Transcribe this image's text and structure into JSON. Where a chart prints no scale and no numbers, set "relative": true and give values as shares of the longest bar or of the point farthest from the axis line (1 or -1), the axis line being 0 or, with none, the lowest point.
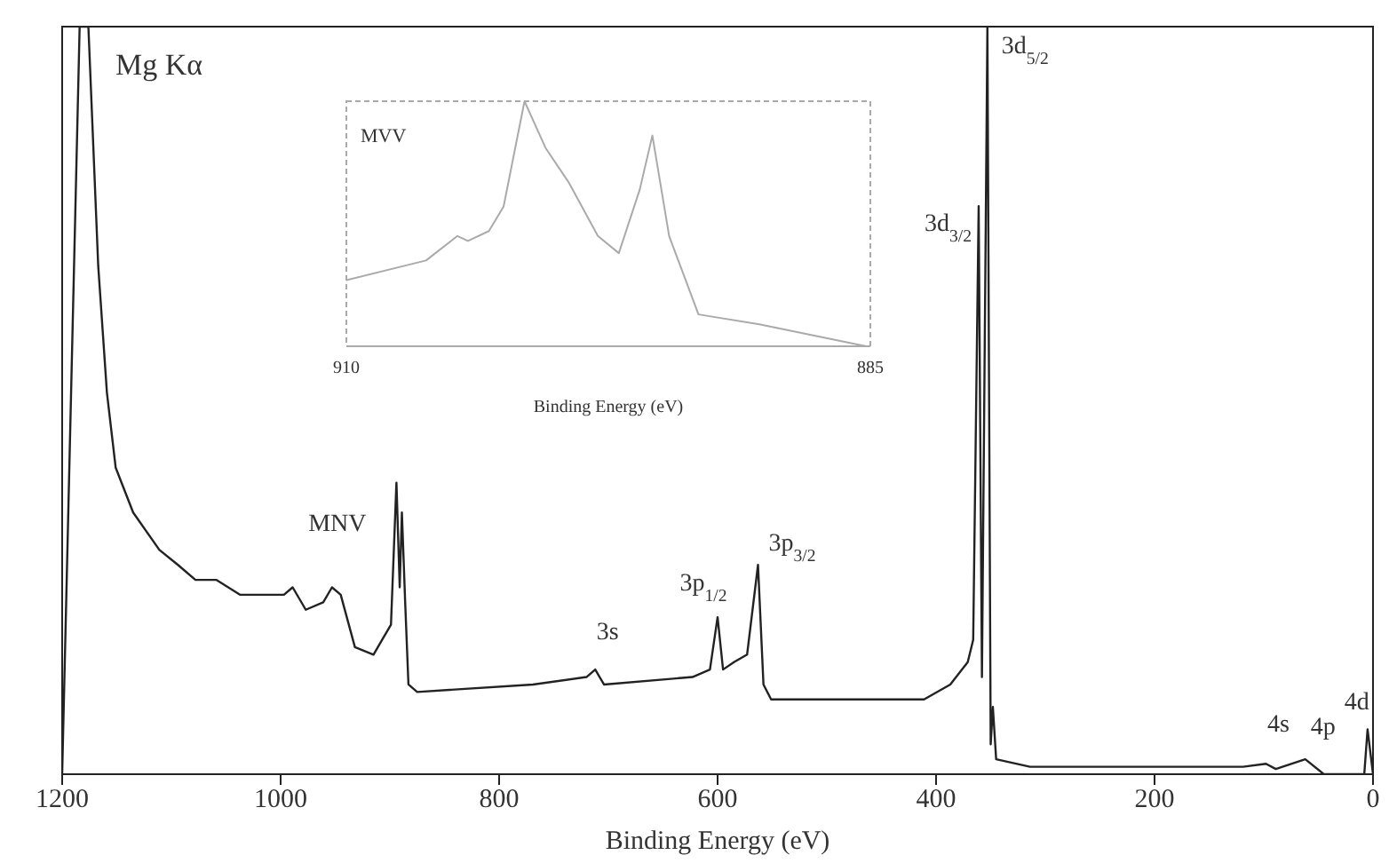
{
  "chart_data": [
    {
      "type": "line",
      "xlabel": "Binding Energy (eV)",
      "xlim": [
        1200,
        0
      ],
      "xticks": [
        1200,
        1000,
        800,
        600,
        400,
        200,
        0
      ],
      "relative": true,
      "x": [
        1200,
        1184,
        1176,
        1167,
        1159,
        1151,
        1135,
        1111,
        1094,
        1078,
        1059,
        1037,
        997,
        989,
        977,
        961,
        953,
        945,
        932,
        915,
        907,
        899,
        894,
        891,
        889,
        886,
        883,
        875,
        769,
        720,
        712,
        704,
        623,
        607,
        600,
        595,
        585,
        573,
        563,
        558,
        551,
        541,
        411,
        387,
        371,
        366,
        361,
        358,
        353,
        350,
        348,
        345,
        314,
        119,
        98,
        89,
        62,
        45,
        8,
        5,
        0
      ],
      "series": [
        {
          "color": "#222222",
          "values": [
            0,
            1.0,
            1.0,
            0.68,
            0.51,
            0.41,
            0.35,
            0.3,
            0.28,
            0.26,
            0.26,
            0.24,
            0.24,
            0.25,
            0.22,
            0.23,
            0.25,
            0.24,
            0.17,
            0.16,
            0.18,
            0.2,
            0.39,
            0.25,
            0.35,
            0.23,
            0.12,
            0.11,
            0.12,
            0.13,
            0.14,
            0.12,
            0.13,
            0.14,
            0.21,
            0.14,
            0.15,
            0.16,
            0.28,
            0.12,
            0.1,
            0.1,
            0.1,
            0.12,
            0.15,
            0.18,
            0.76,
            0.13,
            1.0,
            0.04,
            0.09,
            0.02,
            0.01,
            0.01,
            0.014,
            0.007,
            0.02,
            0,
            0,
            0.06,
            0
          ]
        }
      ],
      "annotations": [
        "Mg Kα",
        {
          "text": "MNV",
          "x": 953,
          "y": 0.25
        },
        {
          "text": "3s",
          "x": 712,
          "y": 0.14
        },
        {
          "text": "3p$_{1/2}$",
          "x": 600,
          "y": 0.21
        },
        {
          "text": "3p$_{3/2}$",
          "x": 563,
          "y": 0.28
        },
        {
          "text": "3d$_{3/2}$",
          "x": 361,
          "y": 0.76
        },
        {
          "text": "3d$_{5/2}$",
          "x": 353,
          "y": 1.0
        },
        {
          "text": "4s",
          "x": 98,
          "y": 0.014
        },
        {
          "text": "4p",
          "x": 62,
          "y": 0.02
        },
        {
          "text": "4d",
          "x": 5,
          "y": 0.06
        }
      ]
    },
    {
      "type": "line",
      "xlabel": "Binding Energy (eV)",
      "xlim": [
        910,
        885
      ],
      "xticks": [
        910,
        885
      ],
      "relative": true,
      "x": [
        910,
        906.2,
        904.7,
        904.2,
        903.2,
        902.5,
        901.5,
        900.5,
        899.4,
        898,
        897,
        896,
        895.4,
        894.6,
        893.2,
        890.3,
        885.2
      ],
      "series": [
        {
          "color": "#aaaaaa",
          "values": [
            0.27,
            0.35,
            0.45,
            0.43,
            0.47,
            0.57,
            1.0,
            0.81,
            0.67,
            0.45,
            0.38,
            0.64,
            0.86,
            0.45,
            0.13,
            0.09,
            0
          ]
        }
      ],
      "annotations": [
        "MVV"
      ]
    }
  ]
}
